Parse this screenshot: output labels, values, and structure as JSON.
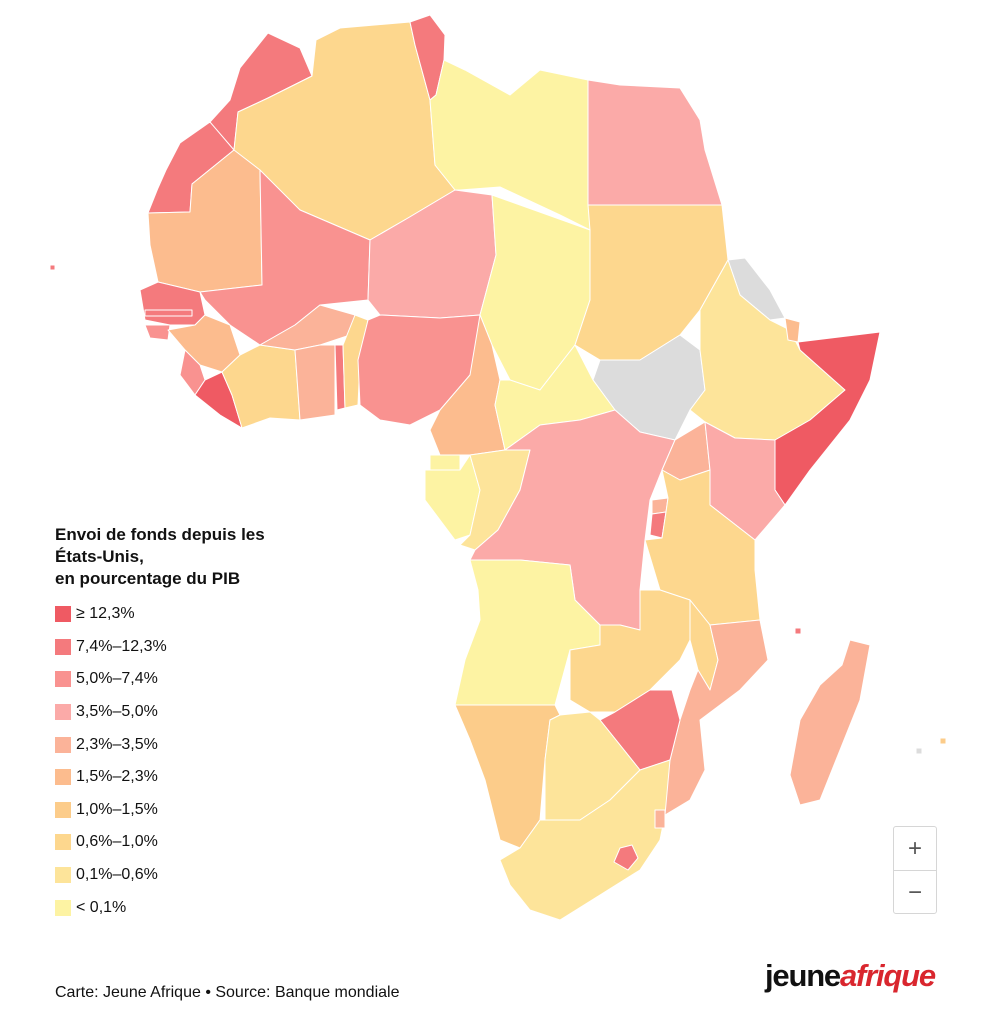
{
  "colors": {
    "bin_0": "#ef5a63",
    "bin_1": "#f47a7d",
    "bin_2": "#f99290",
    "bin_3": "#fbaaa8",
    "bin_4": "#fbb399",
    "bin_5": "#fcbc8e",
    "bin_6": "#fccc8a",
    "bin_7": "#fdd78e",
    "bin_8": "#fde49a",
    "bin_9": "#fdf3a3",
    "no_data": "#dcdcdc"
  },
  "legend": {
    "title_line1": "Envoi de fonds depuis les",
    "title_line2": "États-Unis,",
    "title_line3": "en pourcentage du PIB",
    "items": [
      "≥ 12,3%",
      "7,4%–12,3%",
      "5,0%–7,4%",
      "3,5%–5,0%",
      "2,3%–3,5%",
      "1,5%–2,3%",
      "1,0%–1,5%",
      "0,6%–1,0%",
      "0,1%–0,6%",
      "< 0,1%"
    ]
  },
  "map_data": {
    "morocco": "bin_1",
    "western_sahara": "bin_1",
    "algeria": "bin_7",
    "tunisia": "bin_1",
    "libya": "bin_9",
    "egypt": "bin_3",
    "mauritania": "bin_5",
    "mali": "bin_2",
    "niger": "bin_3",
    "chad": "bin_9",
    "sudan": "bin_7",
    "south_sudan": "no_data",
    "eritrea": "no_data",
    "ethiopia": "bin_8",
    "djibouti": "bin_5",
    "somalia": "bin_0",
    "senegal": "bin_1",
    "gambia": "bin_1",
    "guinea_bissau": "bin_2",
    "guinea": "bin_5",
    "sierra_leone": "bin_2",
    "liberia": "bin_0",
    "cote_divoire": "bin_7",
    "burkina_faso": "bin_4",
    "ghana": "bin_4",
    "togo": "bin_1",
    "benin": "bin_7",
    "nigeria": "bin_2",
    "cameroon": "bin_5",
    "car": "bin_9",
    "equatorial_guinea": "bin_9",
    "gabon": "bin_9",
    "congo": "bin_8",
    "drc": "bin_3",
    "uganda": "bin_4",
    "kenya": "bin_3",
    "rwanda": "bin_4",
    "burundi": "bin_1",
    "tanzania": "bin_7",
    "angola": "bin_9",
    "zambia": "bin_7",
    "malawi": "bin_7",
    "mozambique": "bin_4",
    "zimbabwe": "bin_1",
    "namibia": "bin_6",
    "botswana": "bin_8",
    "south_africa": "bin_8",
    "lesotho": "bin_1",
    "eswatini": "bin_4",
    "madagascar": "bin_4",
    "cape_verde": "bin_1",
    "comoros": "bin_1",
    "mauritius": "bin_6",
    "reunion": "no_data"
  },
  "zoom": {
    "in_label": "+",
    "out_label": "−"
  },
  "footer": {
    "source": "Carte: Jeune Afrique • Source: Banque mondiale"
  },
  "logo": {
    "part1": "jeune",
    "part2": "afrique"
  }
}
